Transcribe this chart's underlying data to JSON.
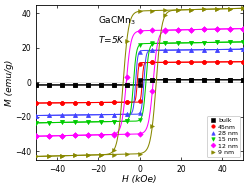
{
  "title_line1": "GaCMn$_3$",
  "title_line2": "$T$=5K",
  "xlabel": "H (kOe)",
  "ylabel": "M (emu/g)",
  "xlim": [
    -50,
    50
  ],
  "ylim": [
    -45,
    45
  ],
  "xticks": [
    -40,
    -20,
    0,
    20,
    40
  ],
  "yticks": [
    -40,
    -20,
    0,
    20,
    40
  ],
  "background_color": "#ffffff",
  "series": [
    {
      "label": "bulk",
      "color": "#000000",
      "marker": "s",
      "Ms": 1.5,
      "Hc": 0.3,
      "alpha": 8.0,
      "slope": 0.0
    },
    {
      "label": "45nm",
      "color": "#ff0000",
      "marker": "o",
      "Ms": 11.5,
      "Hc": 1.2,
      "alpha": 1.5,
      "slope": 0.01
    },
    {
      "label": "28 nm",
      "color": "#4444ff",
      "marker": "^",
      "Ms": 18.5,
      "Hc": 2.0,
      "alpha": 1.0,
      "slope": 0.015
    },
    {
      "label": "15 nm",
      "color": "#00cc00",
      "marker": "v",
      "Ms": 22.5,
      "Hc": 3.0,
      "alpha": 0.7,
      "slope": 0.02
    },
    {
      "label": "12 nm",
      "color": "#ff00ff",
      "marker": "D",
      "Ms": 30.0,
      "Hc": 6.5,
      "alpha": 0.45,
      "slope": 0.025
    },
    {
      "label": "9 nm",
      "color": "#888800",
      "marker": ">",
      "Ms": 41.5,
      "Hc": 8.0,
      "alpha": 0.38,
      "slope": 0.03
    }
  ]
}
